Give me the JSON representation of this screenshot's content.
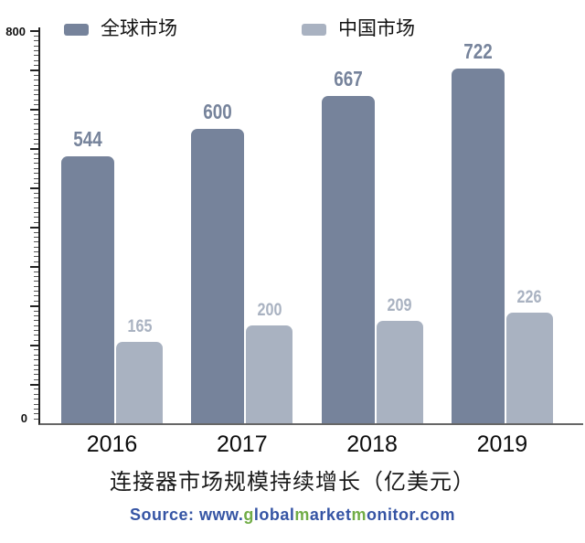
{
  "legend": {
    "items": [
      {
        "label": "全球市场",
        "color": "#76839B"
      },
      {
        "label": "中国市场",
        "color": "#A9B2C1"
      }
    ]
  },
  "y_axis": {
    "max_label": "800",
    "min_label": "0"
  },
  "chart_data": {
    "type": "bar",
    "categories": [
      "2016",
      "2017",
      "2018",
      "2019"
    ],
    "series": [
      {
        "name": "全球市场",
        "values": [
          544,
          600,
          667,
          722
        ],
        "color": "#76839B"
      },
      {
        "name": "中国市场",
        "values": [
          165,
          200,
          209,
          226
        ],
        "color": "#A9B2C1"
      }
    ],
    "title": "连接器市场规模持续增长（亿美元）",
    "xlabel": "",
    "ylabel": "",
    "ylim": [
      0,
      800
    ],
    "y_tick_labels_shown": [
      "800",
      "0"
    ],
    "minor_tick_step": 10,
    "major_tick_step": 80,
    "grid": false,
    "legend_position": "top",
    "bar_value_labels": true
  },
  "title": {
    "text": "连接器市场规模持续增长（亿美元）"
  },
  "source": {
    "full_text": "Source: www.globalmarketmonitor.com",
    "blue": "#3554A4",
    "green": "#71AD47",
    "segments": [
      {
        "text": "Source: www.",
        "color": "#3554A4"
      },
      {
        "text": "g",
        "color": "#71AD47"
      },
      {
        "text": "lobal",
        "color": "#3554A4"
      },
      {
        "text": "m",
        "color": "#71AD47"
      },
      {
        "text": "arket",
        "color": "#3554A4"
      },
      {
        "text": "m",
        "color": "#71AD47"
      },
      {
        "text": "onitor.com",
        "color": "#3554A4"
      }
    ]
  }
}
